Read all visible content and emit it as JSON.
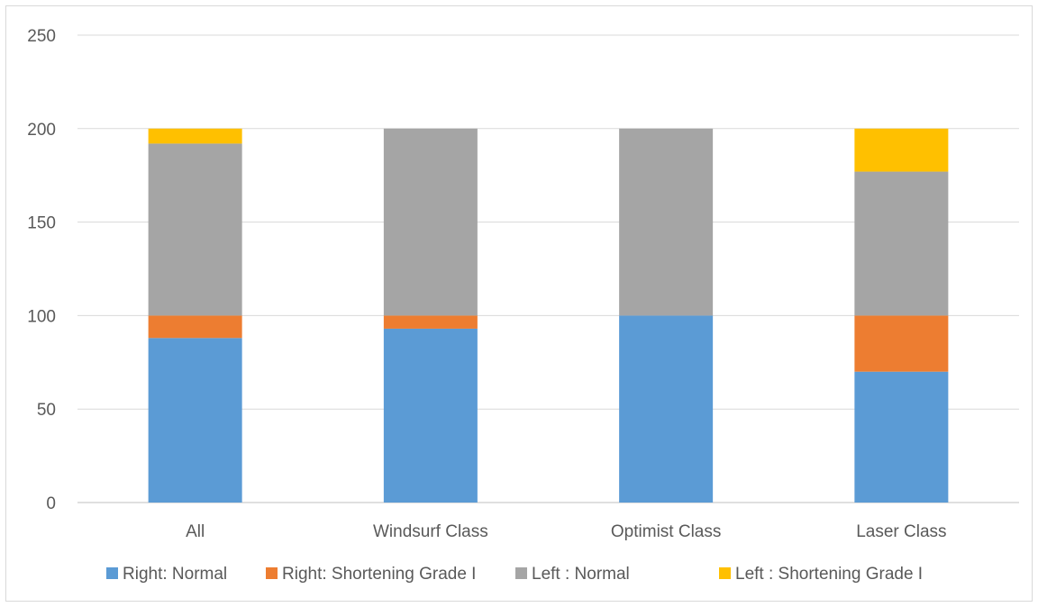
{
  "chart_data": {
    "type": "bar",
    "stacked": true,
    "categories": [
      "All",
      "Windsurf Class",
      "Optimist Class",
      "Laser Class"
    ],
    "series": [
      {
        "name": "Right: Normal",
        "values": [
          88,
          93,
          100,
          70
        ],
        "color": "#5B9BD5"
      },
      {
        "name": "Right: Shortening Grade I",
        "values": [
          12,
          7,
          0,
          30
        ],
        "color": "#ED7D31"
      },
      {
        "name": "Left : Normal",
        "values": [
          92,
          100,
          100,
          77
        ],
        "color": "#A5A5A5"
      },
      {
        "name": "Left : Shortening Grade I",
        "values": [
          8,
          0,
          0,
          23
        ],
        "color": "#FFC000"
      }
    ],
    "ylim": [
      0,
      250
    ],
    "yticks": [
      0,
      50,
      100,
      150,
      200,
      250
    ],
    "grid": true,
    "legend": "bottom",
    "gridline_color": "#d9d9d9",
    "axis_color": "#bfbfbf"
  }
}
